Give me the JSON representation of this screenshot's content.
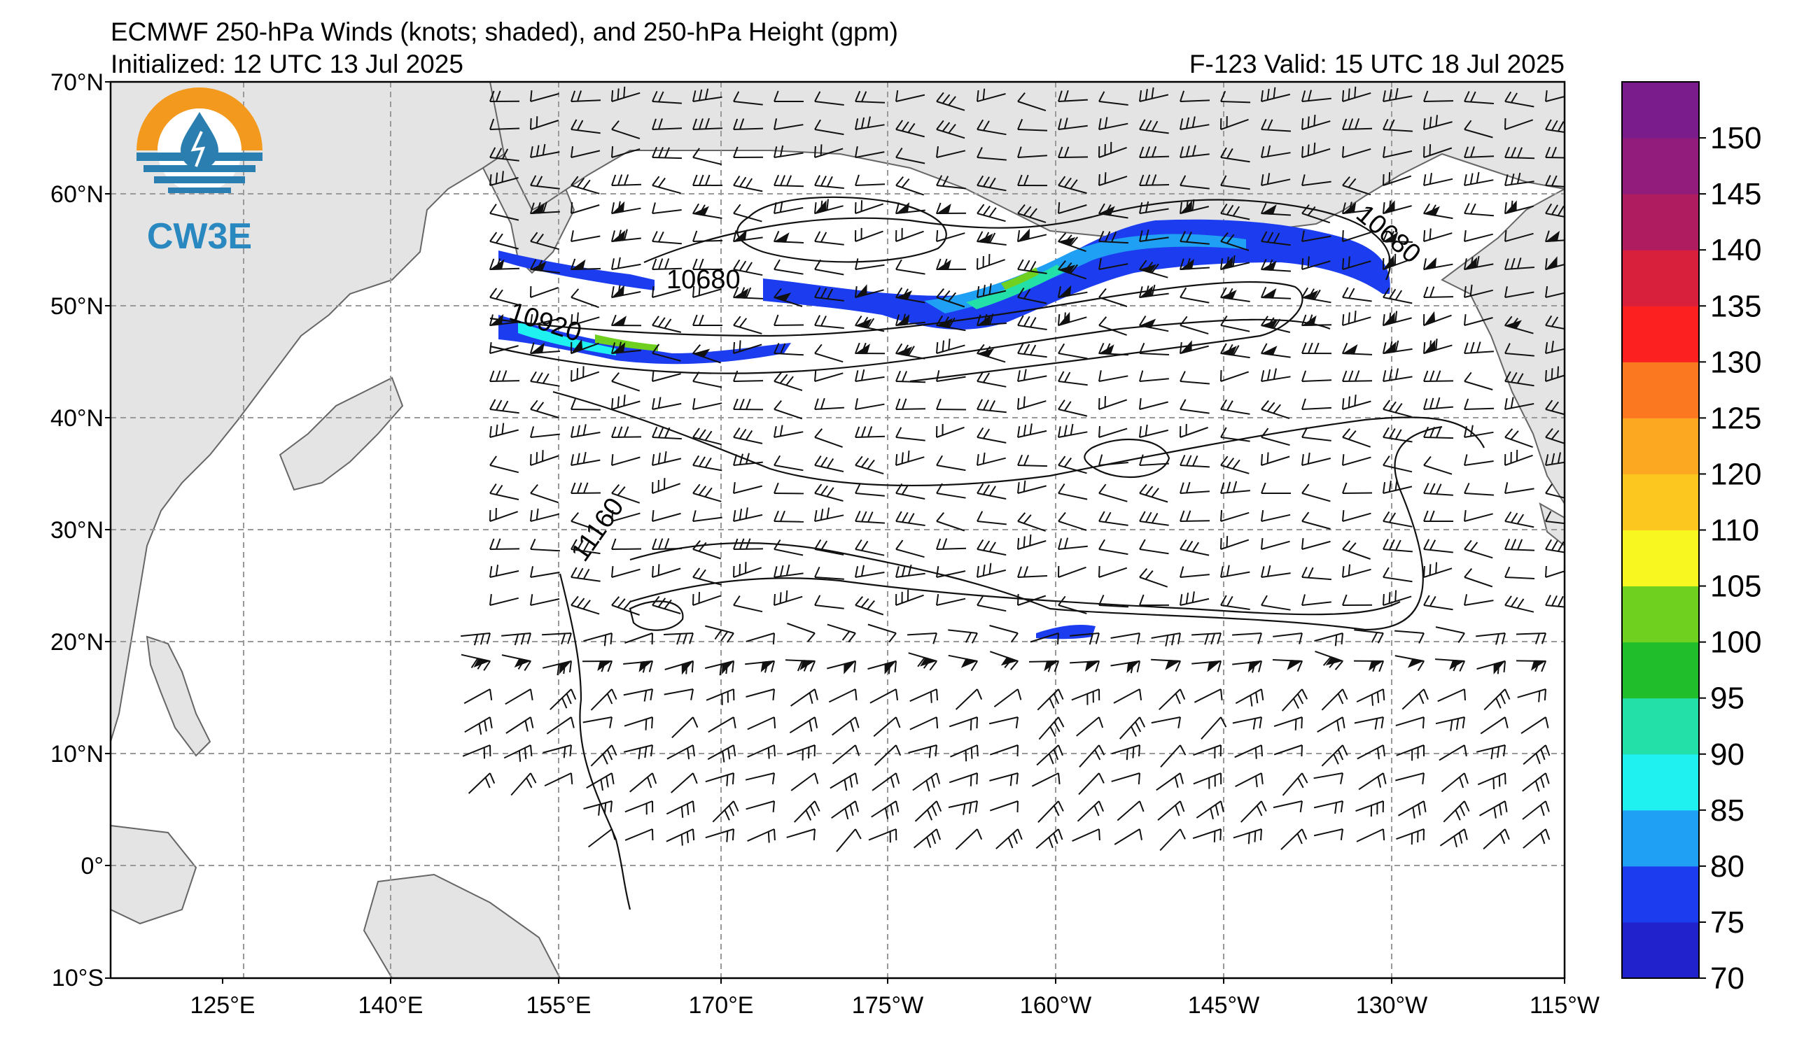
{
  "header": {
    "title_line1": "ECMWF 250-hPa Winds (knots; shaded), and 250-hPa Height (gpm)",
    "title_line2": "Initialized: 12 UTC 13 Jul 2025",
    "valid": "F-123  Valid: 15 UTC 18 Jul 2025"
  },
  "logo": {
    "text": "CW3E"
  },
  "map": {
    "lat_labels": [
      "70°N",
      "60°N",
      "50°N",
      "40°N",
      "30°N",
      "20°N",
      "10°N",
      "0°",
      "10°S"
    ],
    "lon_labels": [
      "125°E",
      "140°E",
      "155°E",
      "170°E",
      "175°W",
      "160°W",
      "145°W",
      "130°W",
      "115°W"
    ],
    "contour_labels": [
      "10680",
      "10920",
      "10680",
      "11160"
    ]
  },
  "colorbar": {
    "colors": [
      "#2222cc",
      "#1c3cf0",
      "#1fa0f5",
      "#1ff0f0",
      "#22e0a8",
      "#1fbe2a",
      "#70d020",
      "#f8f820",
      "#fcc820",
      "#fca820",
      "#fc7820",
      "#fc2020",
      "#d81f3c",
      "#b01c60",
      "#921c7c",
      "#7a1c8c"
    ],
    "tick_labels": [
      "70",
      "75",
      "80",
      "85",
      "90",
      "95",
      "100",
      "105",
      "110",
      "120",
      "125",
      "130",
      "135",
      "140",
      "145",
      "150"
    ]
  }
}
